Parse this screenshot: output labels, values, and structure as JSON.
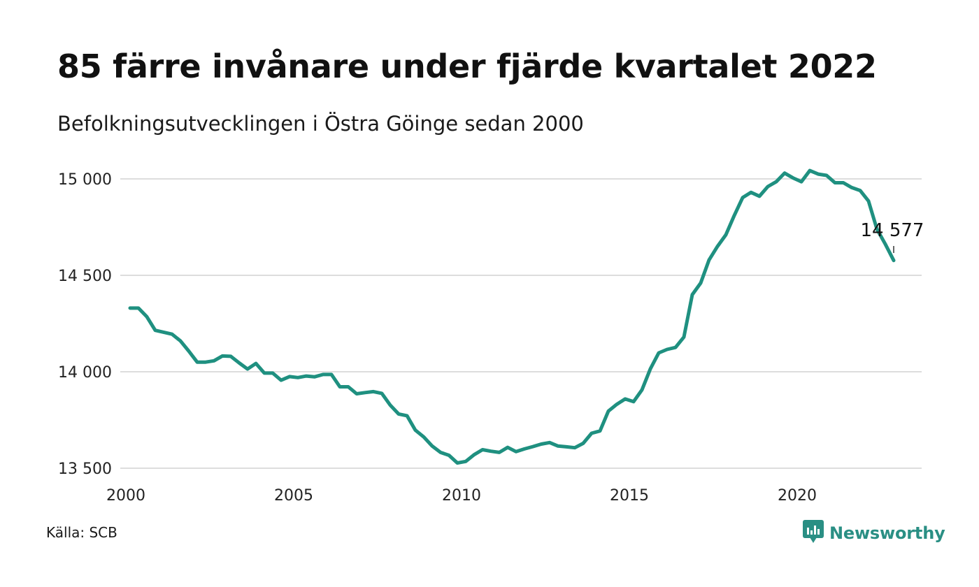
{
  "title": "85 färre invånare under fjärde kvartalet 2022",
  "subtitle": "Befolkningsutvecklingen i Östra Göinge sedan 2000",
  "source": "Källa: SCB",
  "brand": {
    "name": "Newsworthy",
    "icon": "newsworthy-logo-icon",
    "color": "#2a8f84"
  },
  "chart_data": {
    "type": "line",
    "title": "85 färre invånare under fjärde kvartalet 2022",
    "subtitle": "Befolkningsutvecklingen i Östra Göinge sedan 2000",
    "xlabel": "",
    "ylabel": "",
    "xlim": [
      2000,
      2024
    ],
    "ylim": [
      13500,
      15000
    ],
    "xticks": [
      2000,
      2005,
      2010,
      2015,
      2020
    ],
    "xtick_labels": [
      "2000",
      "2005",
      "2010",
      "2015",
      "2020"
    ],
    "yticks": [
      13500,
      14000,
      14500,
      15000
    ],
    "ytick_labels": [
      "13 500",
      "14 000",
      "14 500",
      "15 000"
    ],
    "grid": "horizontal",
    "line_color": "#1f9080",
    "annotation": {
      "label": "14 577",
      "x": 2022.875,
      "y": 14577
    },
    "series": [
      {
        "name": "",
        "x": [
          2000.125,
          2000.375,
          2000.625,
          2000.875,
          2001.125,
          2001.375,
          2001.625,
          2001.875,
          2002.125,
          2002.375,
          2002.625,
          2002.875,
          2003.125,
          2003.375,
          2003.625,
          2003.875,
          2004.125,
          2004.375,
          2004.625,
          2004.875,
          2005.125,
          2005.375,
          2005.625,
          2005.875,
          2006.125,
          2006.375,
          2006.625,
          2006.875,
          2007.125,
          2007.375,
          2007.625,
          2007.875,
          2008.125,
          2008.375,
          2008.625,
          2008.875,
          2009.125,
          2009.375,
          2009.625,
          2009.875,
          2010.125,
          2010.375,
          2010.625,
          2010.875,
          2011.125,
          2011.375,
          2011.625,
          2011.875,
          2012.125,
          2012.375,
          2012.625,
          2012.875,
          2013.125,
          2013.375,
          2013.625,
          2013.875,
          2014.125,
          2014.375,
          2014.625,
          2014.875,
          2015.125,
          2015.375,
          2015.625,
          2015.875,
          2016.125,
          2016.375,
          2016.625,
          2016.875,
          2017.125,
          2017.375,
          2017.625,
          2017.875,
          2018.125,
          2018.375,
          2018.625,
          2018.875,
          2019.125,
          2019.375,
          2019.625,
          2019.875,
          2020.125,
          2020.375,
          2020.625,
          2020.875,
          2021.125,
          2021.375,
          2021.625,
          2021.875,
          2022.125,
          2022.375,
          2022.625,
          2022.875
        ],
        "values": [
          14330,
          14330,
          14285,
          14215,
          14205,
          14195,
          14160,
          14107,
          14050,
          14050,
          14057,
          14082,
          14080,
          14046,
          14014,
          14043,
          13993,
          13993,
          13956,
          13975,
          13970,
          13978,
          13974,
          13986,
          13986,
          13922,
          13922,
          13886,
          13892,
          13897,
          13888,
          13827,
          13781,
          13772,
          13697,
          13662,
          13615,
          13582,
          13567,
          13527,
          13535,
          13570,
          13596,
          13588,
          13582,
          13608,
          13586,
          13600,
          13612,
          13625,
          13633,
          13615,
          13611,
          13606,
          13629,
          13681,
          13693,
          13796,
          13831,
          13859,
          13845,
          13906,
          14015,
          14098,
          14116,
          14126,
          14180,
          14400,
          14460,
          14580,
          14650,
          14710,
          14810,
          14903,
          14930,
          14910,
          14960,
          14985,
          15030,
          15005,
          14985,
          15043,
          15025,
          15018,
          14980,
          14980,
          14955,
          14940,
          14885,
          14740,
          14662,
          14577
        ]
      }
    ]
  }
}
